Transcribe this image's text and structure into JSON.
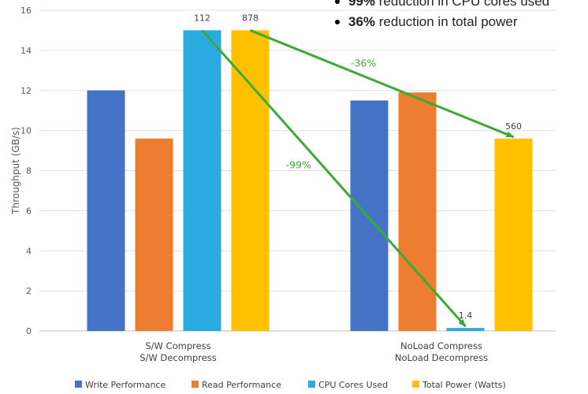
{
  "chart_data": {
    "type": "bar",
    "ylabel": "Throughput (GB/s)",
    "ylim": [
      0,
      16
    ],
    "yticks": [
      0,
      2,
      4,
      6,
      8,
      10,
      12,
      14,
      16
    ],
    "grid": "horizontal",
    "legend_position": "bottom",
    "categories": [
      [
        "S/W Compress",
        "S/W Decompress"
      ],
      [
        "NoLoad Compress",
        "NoLoad Decompress"
      ]
    ],
    "series": [
      {
        "name": "Write Performance",
        "color": "#4472C4",
        "values": [
          12.0,
          11.5
        ],
        "labels": [
          "",
          ""
        ]
      },
      {
        "name": "Read Performance",
        "color": "#ED7D31",
        "values": [
          9.6,
          11.9
        ],
        "labels": [
          "",
          ""
        ]
      },
      {
        "name": "CPU Cores Used",
        "color": "#29ABE2",
        "values": [
          15.0,
          0.15
        ],
        "labels": [
          "112",
          "1.4"
        ]
      },
      {
        "name": "Total Power (Watts)",
        "color": "#FFC000",
        "values": [
          15.0,
          9.6
        ],
        "labels": [
          "878",
          "560"
        ]
      }
    ],
    "annotations": [
      {
        "text": "-99%",
        "color": "#3AAA35",
        "from": {
          "series": 2,
          "category": 0
        },
        "to": {
          "series": 2,
          "category": 1
        }
      },
      {
        "text": "-36%",
        "color": "#3AAA35",
        "from": {
          "series": 3,
          "category": 0
        },
        "to": {
          "series": 3,
          "category": 1
        }
      }
    ],
    "bullets": [
      {
        "bold": "99%",
        "text": " reduction in CPU cores used"
      },
      {
        "bold": "36%",
        "text": " reduction in total power"
      }
    ]
  }
}
